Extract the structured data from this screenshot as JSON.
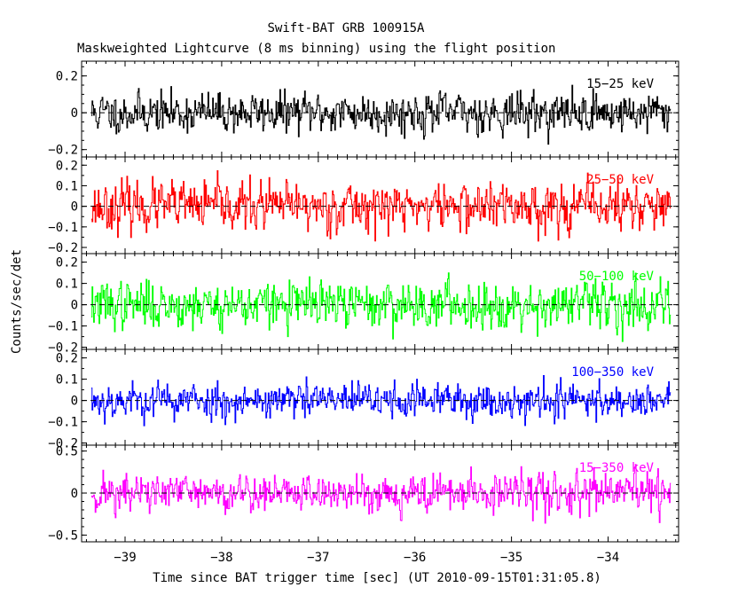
{
  "chart_data": {
    "type": "line",
    "title": "Swift-BAT GRB 100915A",
    "subtitle": "Maskweighted Lightcurve (8 ms binning) using the flight position",
    "xlabel": "Time since BAT trigger time [sec] (UT 2010-09-15T01:31:05.8)",
    "ylabel": "Counts/sec/det",
    "xlim": [
      -39.45,
      -33.27
    ],
    "x_data_range": [
      -39.35,
      -33.35
    ],
    "bin_width": 0.008,
    "x_ticks": [
      {
        "v": -39,
        "label": "−39"
      },
      {
        "v": -38,
        "label": "−38"
      },
      {
        "v": -37,
        "label": "−37"
      },
      {
        "v": -36,
        "label": "−36"
      },
      {
        "v": -35,
        "label": "−35"
      },
      {
        "v": -34,
        "label": "−34"
      }
    ],
    "panels": [
      {
        "name": "15-25 keV",
        "label": "15−25 keV",
        "color": "#000000",
        "ylim": [
          -0.24,
          0.28
        ],
        "noise_sigma": 0.07,
        "seed": 11,
        "y_ticks": [
          {
            "v": 0.2,
            "label": "0.2"
          },
          {
            "v": 0,
            "label": "0"
          },
          {
            "v": -0.2,
            "label": "−0.2"
          }
        ],
        "minor_step": 0.05
      },
      {
        "name": "25-50 keV",
        "label": "25−50 keV",
        "color": "#ff0000",
        "ylim": [
          -0.23,
          0.24
        ],
        "noise_sigma": 0.075,
        "seed": 23,
        "y_ticks": [
          {
            "v": 0.2,
            "label": "0.2"
          },
          {
            "v": 0.1,
            "label": "0.1"
          },
          {
            "v": 0,
            "label": "0"
          },
          {
            "v": -0.1,
            "label": "−0.1"
          },
          {
            "v": -0.2,
            "label": "−0.2"
          }
        ],
        "minor_step": 0.05
      },
      {
        "name": "50-100 keV",
        "label": "50−100 keV",
        "color": "#00ff00",
        "ylim": [
          -0.21,
          0.24
        ],
        "noise_sigma": 0.07,
        "seed": 37,
        "y_ticks": [
          {
            "v": 0.2,
            "label": "0.2"
          },
          {
            "v": 0.1,
            "label": "0.1"
          },
          {
            "v": 0,
            "label": "0"
          },
          {
            "v": -0.1,
            "label": "−0.1"
          },
          {
            "v": -0.2,
            "label": "−0.2"
          }
        ],
        "minor_step": 0.05
      },
      {
        "name": "100-350 keV",
        "label": "100−350 keV",
        "color": "#0000ff",
        "ylim": [
          -0.21,
          0.24
        ],
        "noise_sigma": 0.055,
        "seed": 53,
        "y_ticks": [
          {
            "v": 0.2,
            "label": "0.2"
          },
          {
            "v": 0.1,
            "label": "0.1"
          },
          {
            "v": 0,
            "label": "0"
          },
          {
            "v": -0.1,
            "label": "−0.1"
          },
          {
            "v": -0.2,
            "label": "−0.2"
          }
        ],
        "minor_step": 0.05
      },
      {
        "name": "15-350 keV",
        "label": "15−350 keV",
        "color": "#ff00ff",
        "ylim": [
          -0.58,
          0.57
        ],
        "noise_sigma": 0.15,
        "seed": 71,
        "y_ticks": [
          {
            "v": 0.5,
            "label": "0.5"
          },
          {
            "v": 0,
            "label": "0"
          },
          {
            "v": -0.5,
            "label": "−0.5"
          }
        ],
        "minor_step": 0.1
      }
    ]
  }
}
